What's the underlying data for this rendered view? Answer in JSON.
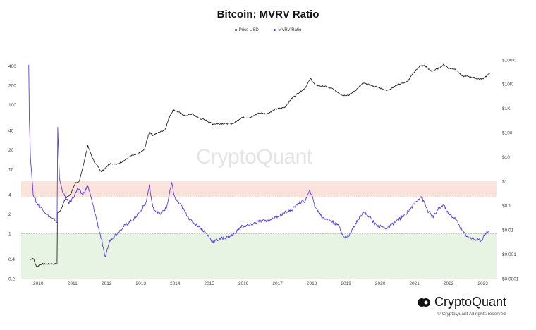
{
  "chart_data": {
    "type": "line",
    "title": "Bitcoin: MVRV Ratio",
    "legend": {
      "placement": "top-center"
    },
    "x_tick_labels": [
      "2010",
      "2011",
      "2012",
      "2013",
      "2014",
      "2015",
      "2016",
      "2017",
      "2018",
      "2019",
      "2020",
      "2021",
      "2022",
      "2023"
    ],
    "y_left": {
      "scale": "log",
      "range": [
        0.2,
        500
      ],
      "tick_labels": [
        "0.2",
        "0.4",
        "1",
        "2",
        "4",
        "10",
        "20",
        "40",
        "100",
        "200",
        "400"
      ],
      "tick_values": [
        0.2,
        0.4,
        1,
        2,
        4,
        10,
        20,
        40,
        100,
        200,
        400
      ]
    },
    "y_right": {
      "scale": "log",
      "range": [
        0.0001,
        100000
      ],
      "tick_labels": [
        "$0.0001",
        "$0.001",
        "$0.01",
        "$0.1",
        "$1",
        "$10",
        "$100",
        "$1K",
        "$10K",
        "$100K"
      ],
      "tick_values": [
        0.0001,
        0.001,
        0.01,
        0.1,
        1,
        10,
        100,
        1000,
        10000,
        100000
      ]
    },
    "zones": [
      {
        "from": 3.7,
        "to": 6.5,
        "color": "#fbe3dc",
        "line": 3.7,
        "line_color": "#e48a84"
      },
      {
        "from": 0.2,
        "to": 1.0,
        "color": "#e7f4e4",
        "line": 1.0,
        "line_color": "#8cc98c"
      }
    ],
    "series": [
      {
        "name": "Price USD",
        "axis": "right",
        "color": "#111111",
        "points": [
          [
            2009.75,
            0.0006
          ],
          [
            2009.85,
            0.0007
          ],
          [
            2009.95,
            0.0003
          ],
          [
            2010.1,
            0.0004
          ],
          [
            2010.3,
            0.0004
          ],
          [
            2010.5,
            0.0004
          ],
          [
            2010.55,
            0.0004
          ],
          [
            2010.56,
            0.05
          ],
          [
            2010.65,
            0.065
          ],
          [
            2010.8,
            0.2
          ],
          [
            2010.95,
            0.3
          ],
          [
            2011.1,
            0.9
          ],
          [
            2011.2,
            1.0
          ],
          [
            2011.35,
            7
          ],
          [
            2011.45,
            30
          ],
          [
            2011.55,
            12
          ],
          [
            2011.65,
            6
          ],
          [
            2011.75,
            4
          ],
          [
            2011.85,
            2.5
          ],
          [
            2011.95,
            3.5
          ],
          [
            2012.1,
            5.5
          ],
          [
            2012.3,
            5
          ],
          [
            2012.5,
            7
          ],
          [
            2012.7,
            11
          ],
          [
            2012.9,
            13
          ],
          [
            2013.1,
            20
          ],
          [
            2013.25,
            110
          ],
          [
            2013.35,
            80
          ],
          [
            2013.5,
            100
          ],
          [
            2013.7,
            130
          ],
          [
            2013.85,
            500
          ],
          [
            2013.95,
            900
          ],
          [
            2014.1,
            700
          ],
          [
            2014.3,
            500
          ],
          [
            2014.5,
            600
          ],
          [
            2014.7,
            400
          ],
          [
            2014.9,
            330
          ],
          [
            2015.1,
            230
          ],
          [
            2015.4,
            240
          ],
          [
            2015.7,
            240
          ],
          [
            2015.95,
            430
          ],
          [
            2016.2,
            420
          ],
          [
            2016.45,
            650
          ],
          [
            2016.7,
            610
          ],
          [
            2016.95,
            950
          ],
          [
            2017.2,
            1100
          ],
          [
            2017.4,
            2500
          ],
          [
            2017.6,
            4300
          ],
          [
            2017.8,
            7000
          ],
          [
            2017.97,
            17000
          ],
          [
            2018.1,
            9000
          ],
          [
            2018.4,
            8000
          ],
          [
            2018.6,
            6500
          ],
          [
            2018.9,
            3500
          ],
          [
            2019.1,
            3600
          ],
          [
            2019.3,
            6000
          ],
          [
            2019.5,
            11000
          ],
          [
            2019.8,
            8500
          ],
          [
            2019.97,
            7200
          ],
          [
            2020.2,
            5500
          ],
          [
            2020.5,
            9500
          ],
          [
            2020.8,
            13000
          ],
          [
            2020.97,
            29000
          ],
          [
            2021.15,
            55000
          ],
          [
            2021.3,
            58000
          ],
          [
            2021.5,
            34000
          ],
          [
            2021.7,
            45000
          ],
          [
            2021.86,
            65000
          ],
          [
            2022.0,
            46000
          ],
          [
            2022.2,
            42000
          ],
          [
            2022.4,
            21000
          ],
          [
            2022.6,
            21000
          ],
          [
            2022.85,
            16500
          ],
          [
            2023.0,
            17000
          ],
          [
            2023.15,
            24000
          ],
          [
            2023.2,
            28000
          ]
        ]
      },
      {
        "name": "MVRV Ratio",
        "axis": "left",
        "color": "#5b3ee0",
        "points": [
          [
            2009.72,
            420
          ],
          [
            2009.74,
            60
          ],
          [
            2009.77,
            16
          ],
          [
            2009.85,
            4.2
          ],
          [
            2009.95,
            3.0
          ],
          [
            2010.1,
            2.5
          ],
          [
            2010.25,
            2.0
          ],
          [
            2010.4,
            1.7
          ],
          [
            2010.5,
            1.6
          ],
          [
            2010.55,
            1.5
          ],
          [
            2010.57,
            45
          ],
          [
            2010.62,
            7
          ],
          [
            2010.7,
            4.8
          ],
          [
            2010.8,
            3.5
          ],
          [
            2010.9,
            3.0
          ],
          [
            2011.0,
            3.5
          ],
          [
            2011.15,
            5
          ],
          [
            2011.3,
            4
          ],
          [
            2011.45,
            5.5
          ],
          [
            2011.55,
            3.5
          ],
          [
            2011.7,
            1.7
          ],
          [
            2011.85,
            0.8
          ],
          [
            2011.95,
            0.42
          ],
          [
            2012.1,
            0.8
          ],
          [
            2012.3,
            1.0
          ],
          [
            2012.5,
            1.3
          ],
          [
            2012.8,
            1.7
          ],
          [
            2013.0,
            2.3
          ],
          [
            2013.15,
            3.0
          ],
          [
            2013.25,
            5.5
          ],
          [
            2013.35,
            2.5
          ],
          [
            2013.55,
            2.0
          ],
          [
            2013.75,
            2.5
          ],
          [
            2013.9,
            6.0
          ],
          [
            2014.0,
            3.5
          ],
          [
            2014.2,
            2.6
          ],
          [
            2014.45,
            1.6
          ],
          [
            2014.7,
            1.3
          ],
          [
            2014.95,
            0.95
          ],
          [
            2015.1,
            0.75
          ],
          [
            2015.4,
            0.85
          ],
          [
            2015.7,
            0.95
          ],
          [
            2015.95,
            1.3
          ],
          [
            2016.2,
            1.35
          ],
          [
            2016.45,
            1.55
          ],
          [
            2016.7,
            1.6
          ],
          [
            2016.95,
            1.8
          ],
          [
            2017.2,
            2.1
          ],
          [
            2017.45,
            2.4
          ],
          [
            2017.6,
            3.0
          ],
          [
            2017.8,
            3.2
          ],
          [
            2017.95,
            4.7
          ],
          [
            2018.1,
            2.6
          ],
          [
            2018.3,
            1.8
          ],
          [
            2018.55,
            1.6
          ],
          [
            2018.8,
            1.3
          ],
          [
            2018.95,
            0.85
          ],
          [
            2019.1,
            0.95
          ],
          [
            2019.3,
            1.5
          ],
          [
            2019.5,
            2.2
          ],
          [
            2019.7,
            1.8
          ],
          [
            2019.85,
            1.4
          ],
          [
            2019.97,
            1.3
          ],
          [
            2020.2,
            1.2
          ],
          [
            2020.5,
            1.6
          ],
          [
            2020.7,
            1.9
          ],
          [
            2020.9,
            2.5
          ],
          [
            2021.1,
            3.4
          ],
          [
            2021.2,
            3.8
          ],
          [
            2021.4,
            2.2
          ],
          [
            2021.55,
            1.8
          ],
          [
            2021.7,
            2.4
          ],
          [
            2021.85,
            2.8
          ],
          [
            2022.0,
            2.0
          ],
          [
            2022.2,
            1.7
          ],
          [
            2022.4,
            1.1
          ],
          [
            2022.55,
            0.9
          ],
          [
            2022.8,
            0.8
          ],
          [
            2022.95,
            0.78
          ],
          [
            2023.1,
            1.05
          ],
          [
            2023.2,
            1.1
          ]
        ]
      }
    ]
  },
  "watermark": "CryptoQuant",
  "brand": {
    "name": "CryptoQuant",
    "copyright": "© CryptoQuant All rights reserved."
  }
}
